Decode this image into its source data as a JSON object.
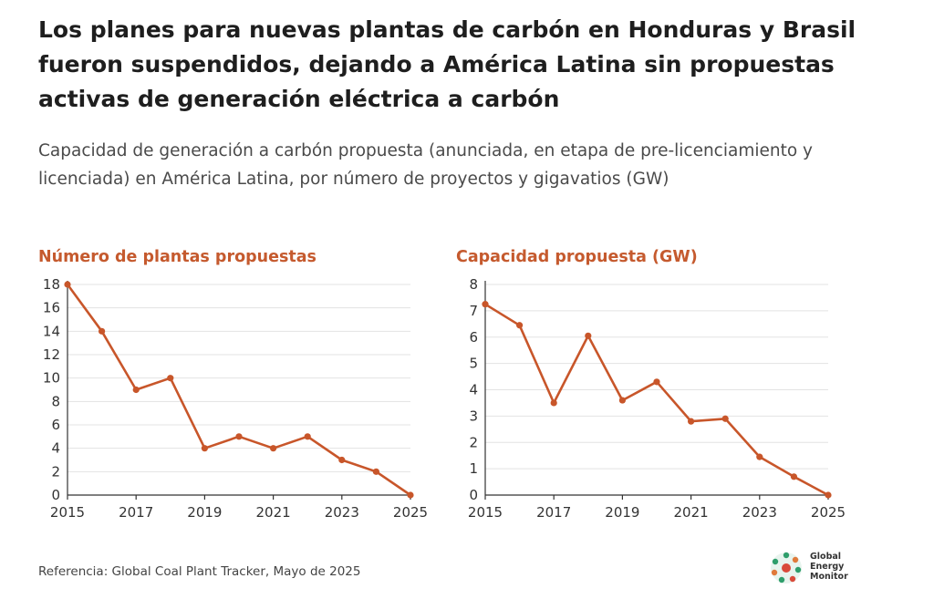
{
  "header": {
    "title": "Los planes para nuevas plantas de carbón en Honduras y Brasil fueron suspendidos, dejando a América Latina sin propuestas activas de generación eléctrica a carbón",
    "subtitle": "Capacidad de generación a carbón propuesta (anunciada, en etapa de pre-licenciamiento y licenciada) en América Latina, por número de proyectos y gigavatios (GW)"
  },
  "chart_data": [
    {
      "type": "line",
      "title": "Número de plantas propuestas",
      "xlabel": "",
      "ylabel": "",
      "x": [
        2015,
        2016,
        2017,
        2018,
        2019,
        2020,
        2021,
        2022,
        2023,
        2024,
        2025
      ],
      "y": [
        18,
        14,
        9,
        10,
        4,
        5,
        4,
        5,
        3,
        2,
        0
      ],
      "xlim": [
        2015,
        2025
      ],
      "ylim": [
        0,
        18
      ],
      "xticks": [
        "2015",
        "2017",
        "2019",
        "2021",
        "2023",
        "2025"
      ],
      "yticks": [
        "0",
        "2",
        "4",
        "6",
        "8",
        "10",
        "12",
        "14",
        "16",
        "18"
      ],
      "grid": true,
      "color": "#c8562a"
    },
    {
      "type": "line",
      "title": "Capacidad propuesta (GW)",
      "xlabel": "",
      "ylabel": "",
      "x": [
        2015,
        2016,
        2017,
        2018,
        2019,
        2020,
        2021,
        2022,
        2023,
        2024,
        2025
      ],
      "y": [
        7.25,
        6.45,
        3.5,
        6.05,
        3.6,
        4.3,
        2.8,
        2.9,
        1.45,
        0.7,
        0
      ],
      "xlim": [
        2015,
        2025
      ],
      "ylim": [
        0,
        8
      ],
      "xticks": [
        "2015",
        "2017",
        "2019",
        "2021",
        "2023",
        "2025"
      ],
      "yticks": [
        "0",
        "1",
        "2",
        "3",
        "4",
        "5",
        "6",
        "7",
        "8"
      ],
      "grid": true,
      "color": "#c8562a"
    }
  ],
  "footer": {
    "source": "Referencia: Global Coal Plant Tracker, Mayo de 2025"
  },
  "logo": {
    "line1": "Global",
    "line2": "Energy",
    "line3": "Monitor"
  }
}
